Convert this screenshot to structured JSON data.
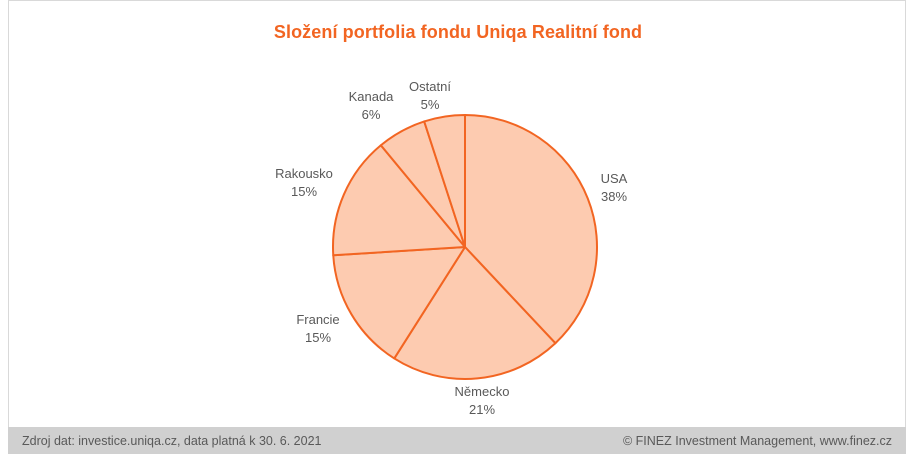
{
  "chart_data": {
    "type": "pie",
    "title": "Složení portfolia fondu Uniqa Realitní fond",
    "slices": [
      {
        "label": "USA",
        "value": 38,
        "value_label": "38%"
      },
      {
        "label": "Německo",
        "value": 21,
        "value_label": "21%"
      },
      {
        "label": "Francie",
        "value": 15,
        "value_label": "15%"
      },
      {
        "label": "Rakousko",
        "value": 15,
        "value_label": "15%"
      },
      {
        "label": "Kanada",
        "value": 6,
        "value_label": "6%"
      },
      {
        "label": "Ostatní",
        "value": 5,
        "value_label": "5%"
      }
    ],
    "fill_color": "#fdcbb0",
    "stroke_color": "#f26522",
    "label_color": "#595959"
  },
  "footer": {
    "source": "Zdroj dat: investice.uniqa.cz, data platná k 30. 6. 2021",
    "copyright": "© FINEZ Investment Management, www.finez.cz"
  }
}
